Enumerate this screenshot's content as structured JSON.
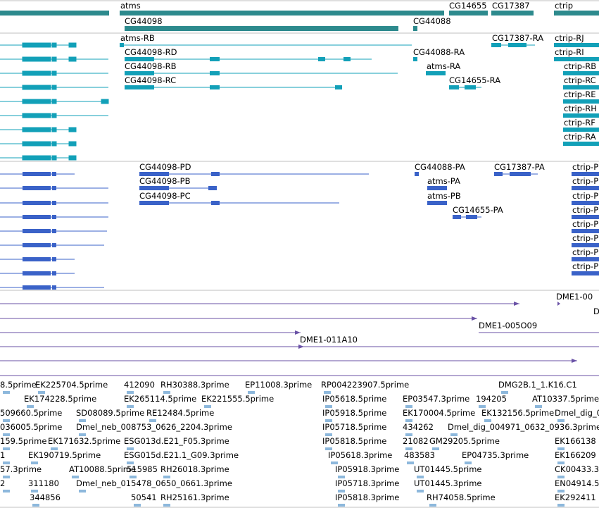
{
  "colors": {
    "gene": "#2d8a8d",
    "mrna": "#12a0b8",
    "protein": "#3a62c8",
    "cdna": "#6a52a6",
    "est": "#8db8dc",
    "divider": "#bfbfbf"
  },
  "genes": {
    "row1": [
      "atms",
      "CG14655",
      "CG17387",
      "ctrip"
    ],
    "row2": [
      "CG44098",
      "CG44088"
    ]
  },
  "mrna_labels": [
    "atms-RB",
    "CG17387-RA",
    "ctrip-RJ",
    "CG44098-RD",
    "CG44088-RA",
    "ctrip-RI",
    "CG44098-RB",
    "atms-RA",
    "ctrip-RB",
    "CG44098-RC",
    "CG14655-RA",
    "ctrip-RC",
    "ctrip-RE",
    "ctrip-RH",
    "ctrip-RF",
    "ctrip-RA"
  ],
  "protein_labels": [
    "CG44098-PD",
    "CG44088-PA",
    "CG17387-PA",
    "ctrip-P",
    "CG44098-PB",
    "atms-PA",
    "ctrip-P",
    "CG44098-PC",
    "atms-PB",
    "ctrip-P",
    "CG14655-PA",
    "ctrip-P",
    "ctrip-P",
    "ctrip-P",
    "ctrip-P",
    "ctrip-P"
  ],
  "cdna_labels": [
    "DME1-00",
    "D",
    "DME1-005O09",
    "DME1-011A10"
  ],
  "est_labels": [
    "8.5prime",
    "EK225704.5prime",
    "412090",
    "RH30388.3prime",
    "EP11008.3prime",
    "RP004223907.5prime",
    "DMG2B.1_1.K16.C1",
    "EK174228.5prime",
    "EK265114.5prime",
    "EK221555.5prime",
    "IP05618.5prime",
    "EP03547.3prime",
    "194205",
    "AT10337.5prime",
    "509660.5prime",
    "SD08089.5prime",
    "RE12484.5prime",
    "IP05918.5prime",
    "EK170004.5prime",
    "EK132156.5prime",
    "Dmel_dig_0",
    "036005.5prime",
    "Dmel_neb_008753_0626_2204.3prime",
    "IP05718.5prime",
    "434262",
    "Dmel_dig_004971_0632_0936.3prime",
    "159.5prime",
    "EK171632.5prime",
    "ESG013d.E21_F05.3prime",
    "IP05818.5prime",
    "21082",
    "GM29205.5prime",
    "EK166138",
    "1",
    "EK190719.5prime",
    "ESG015d.E21.1_G09.3prime",
    "IP05618.3prime",
    "483583",
    "EP04735.3prime",
    "EK166209",
    "57.3prime",
    "AT10088.5prime",
    "515985",
    "RH26018.3prime",
    "IP05918.3prime",
    "UT01445.5prime",
    "CK00433.3",
    "2",
    "311180",
    "Dmel_neb_015478_0650_0661.3prime",
    "IP05718.3prime",
    "UT01445.3prime",
    "EN04914.5",
    "344856",
    "50541",
    "RH25161.3prime",
    "IP05818.3prime",
    "RH74058.5prime",
    "EK292411"
  ]
}
